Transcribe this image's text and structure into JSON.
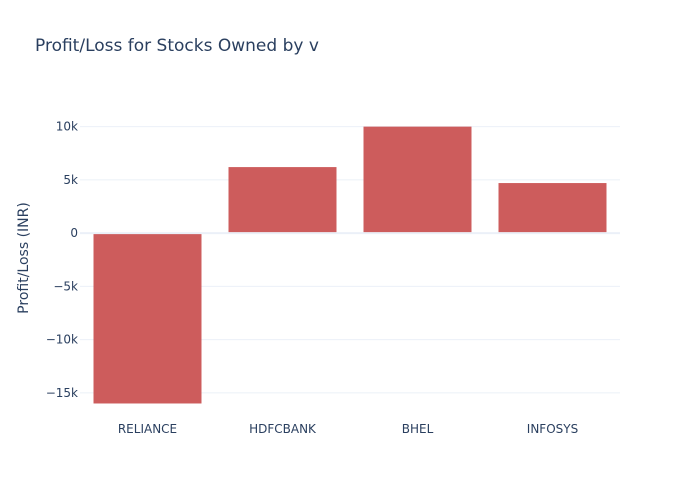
{
  "chart_data": {
    "type": "bar",
    "title": "Profit/Loss for Stocks Owned by v",
    "xlabel": "",
    "ylabel": "Profit/Loss (INR)",
    "categories": [
      "RELIANCE",
      "HDFCBANK",
      "BHEL",
      "INFOSYS"
    ],
    "values": [
      -16000,
      6200,
      10000,
      4700
    ],
    "ylim": [
      -16800,
      12500
    ],
    "y_ticks": [
      10000,
      5000,
      0,
      -5000,
      -10000,
      -15000
    ],
    "y_tick_labels": [
      "10k",
      "5k",
      "0",
      "−5k",
      "−10k",
      "−15k"
    ],
    "grid": true,
    "bar_color": "#cd5c5c"
  }
}
